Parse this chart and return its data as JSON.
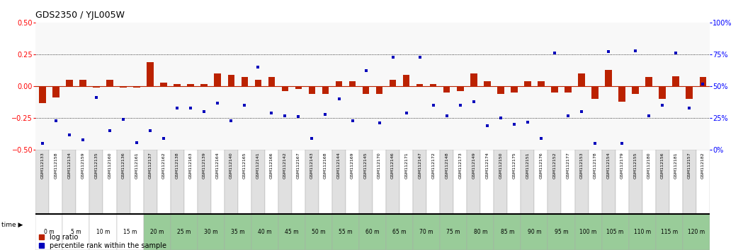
{
  "title": "GDS2350 / YJL005W",
  "gsm_labels": [
    "GSM112133",
    "GSM112158",
    "GSM112134",
    "GSM112159",
    "GSM112135",
    "GSM112160",
    "GSM112136",
    "GSM112161",
    "GSM112137",
    "GSM112162",
    "GSM112138",
    "GSM112163",
    "GSM112139",
    "GSM112164",
    "GSM112140",
    "GSM112165",
    "GSM112141",
    "GSM112166",
    "GSM112142",
    "GSM112167",
    "GSM112143",
    "GSM112168",
    "GSM112144",
    "GSM112169",
    "GSM112145",
    "GSM112170",
    "GSM112146",
    "GSM112171",
    "GSM112147",
    "GSM112172",
    "GSM112148",
    "GSM112173",
    "GSM112149",
    "GSM112174",
    "GSM112150",
    "GSM112175",
    "GSM112151",
    "GSM112176",
    "GSM112152",
    "GSM112177",
    "GSM112153",
    "GSM112178",
    "GSM112154",
    "GSM112179",
    "GSM112155",
    "GSM112180",
    "GSM112156",
    "GSM112181",
    "GSM112157",
    "GSM112182"
  ],
  "time_labels": [
    "0 m",
    "5 m",
    "10 m",
    "15 m",
    "20 m",
    "25 m",
    "30 m",
    "35 m",
    "40 m",
    "45 m",
    "50 m",
    "55 m",
    "60 m",
    "65 m",
    "70 m",
    "75 m",
    "80 m",
    "85 m",
    "90 m",
    "95 m",
    "100 m",
    "105 m",
    "110 m",
    "115 m",
    "120 m"
  ],
  "log_ratio": [
    -0.13,
    -0.09,
    0.05,
    0.05,
    -0.01,
    0.05,
    -0.01,
    -0.01,
    0.19,
    0.03,
    0.02,
    0.02,
    0.02,
    0.1,
    0.09,
    0.07,
    0.05,
    0.07,
    -0.04,
    -0.02,
    -0.06,
    -0.06,
    0.04,
    0.04,
    -0.06,
    -0.06,
    0.05,
    0.09,
    0.02,
    0.02,
    -0.05,
    -0.04,
    0.1,
    0.04,
    -0.06,
    -0.05,
    0.04,
    0.04,
    -0.05,
    -0.05,
    0.1,
    -0.1,
    0.13,
    -0.12,
    -0.06,
    0.07,
    -0.1,
    0.08,
    -0.1,
    0.07
  ],
  "percentile_rank": [
    0.05,
    0.23,
    0.12,
    0.08,
    0.41,
    0.15,
    0.24,
    0.06,
    0.15,
    0.09,
    0.33,
    0.33,
    0.3,
    0.37,
    0.23,
    0.35,
    0.65,
    0.29,
    0.27,
    0.26,
    0.09,
    0.28,
    0.4,
    0.23,
    0.62,
    0.21,
    0.73,
    0.29,
    0.73,
    0.35,
    0.27,
    0.35,
    0.38,
    0.19,
    0.25,
    0.2,
    0.22,
    0.09,
    0.76,
    0.27,
    0.3,
    0.05,
    0.77,
    0.05,
    0.78,
    0.27,
    0.35,
    0.76,
    0.33,
    0.52
  ],
  "bar_color": "#bb2200",
  "dot_color": "#0000bb",
  "ylim_left": [
    -0.5,
    0.5
  ],
  "ylim_right": [
    0.0,
    1.0
  ],
  "yticks_left": [
    -0.5,
    -0.25,
    0.0,
    0.25,
    0.5
  ],
  "yticks_right": [
    0.0,
    0.25,
    0.5,
    0.75,
    1.0
  ],
  "yticklabels_right": [
    "0%",
    "25%",
    "50%",
    "75%",
    "100%"
  ],
  "time_bg_colors": {
    "0 m": "#ffffff",
    "5 m": "#ffffff",
    "10 m": "#ffffff",
    "15 m": "#ffffff",
    "20 m": "#99cc99",
    "25 m": "#99cc99",
    "30 m": "#99cc99",
    "35 m": "#99cc99",
    "40 m": "#99cc99",
    "45 m": "#99cc99",
    "50 m": "#99cc99",
    "55 m": "#99cc99",
    "60 m": "#99cc99",
    "65 m": "#99cc99",
    "70 m": "#99cc99",
    "75 m": "#99cc99",
    "80 m": "#99cc99",
    "85 m": "#99cc99",
    "90 m": "#99cc99",
    "95 m": "#99cc99",
    "100 m": "#99cc99",
    "105 m": "#99cc99",
    "110 m": "#99cc99",
    "115 m": "#99cc99",
    "120 m": "#99cc99"
  }
}
